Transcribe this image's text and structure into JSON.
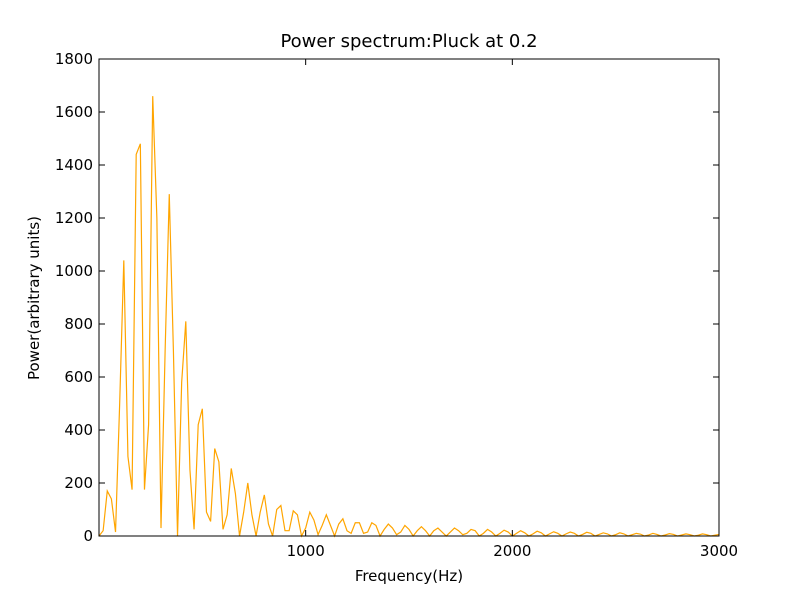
{
  "chart_data": {
    "type": "line",
    "title": "Power spectrum:Pluck at 0.2",
    "x_label": "Frequency(Hz)",
    "y_label": "Power(arbitrary units)",
    "xlim": [
      0,
      3000
    ],
    "xticks": [
      1000,
      2000,
      3000
    ],
    "ylim": [
      0,
      1800
    ],
    "yticks": [
      0,
      200,
      400,
      600,
      800,
      1000,
      1200,
      1400,
      1600,
      1800
    ],
    "grid": false,
    "x": [
      0,
      20,
      40,
      60,
      80,
      100,
      120,
      140,
      160,
      180,
      200,
      220,
      240,
      260,
      280,
      300,
      320,
      340,
      360,
      380,
      400,
      420,
      440,
      460,
      480,
      500,
      520,
      540,
      560,
      580,
      600,
      620,
      640,
      660,
      680,
      700,
      720,
      740,
      760,
      780,
      800,
      820,
      840,
      860,
      880,
      900,
      920,
      940,
      960,
      980,
      1000,
      1020,
      1040,
      1060,
      1080,
      1100,
      1120,
      1140,
      1160,
      1180,
      1200,
      1220,
      1240,
      1260,
      1280,
      1300,
      1320,
      1340,
      1360,
      1380,
      1400,
      1420,
      1440,
      1460,
      1480,
      1500,
      1520,
      1540,
      1560,
      1580,
      1600,
      1620,
      1640,
      1660,
      1680,
      1700,
      1720,
      1740,
      1760,
      1780,
      1800,
      1820,
      1840,
      1860,
      1880,
      1900,
      1920,
      1940,
      1960,
      1980,
      2000,
      2020,
      2040,
      2060,
      2080,
      2100,
      2120,
      2140,
      2160,
      2180,
      2200,
      2220,
      2240,
      2260,
      2280,
      2300,
      2320,
      2340,
      2360,
      2380,
      2400,
      2420,
      2440,
      2460,
      2480,
      2500,
      2520,
      2540,
      2560,
      2580,
      2600,
      2620,
      2640,
      2660,
      2680,
      2700,
      2720,
      2740,
      2760,
      2780,
      2800,
      2820,
      2840,
      2860,
      2880,
      2900,
      2920,
      2940,
      2960,
      2980,
      3000
    ],
    "series": [
      {
        "name": "power",
        "color": "#ffa500",
        "values": [
          0,
          20,
          170,
          140,
          15,
          500,
          1040,
          300,
          175,
          1440,
          1480,
          175,
          420,
          1660,
          1200,
          30,
          700,
          1290,
          700,
          0,
          580,
          810,
          250,
          25,
          420,
          480,
          90,
          55,
          330,
          280,
          25,
          80,
          255,
          160,
          0,
          90,
          200,
          80,
          0,
          90,
          155,
          45,
          0,
          100,
          115,
          20,
          20,
          95,
          80,
          0,
          30,
          90,
          60,
          5,
          40,
          80,
          40,
          0,
          45,
          65,
          20,
          10,
          50,
          50,
          10,
          15,
          50,
          40,
          0,
          25,
          45,
          30,
          5,
          15,
          40,
          25,
          0,
          20,
          35,
          20,
          0,
          20,
          30,
          15,
          0,
          15,
          30,
          20,
          5,
          10,
          25,
          20,
          0,
          10,
          25,
          15,
          0,
          10,
          22,
          15,
          0,
          10,
          20,
          12,
          0,
          8,
          18,
          12,
          0,
          8,
          16,
          10,
          0,
          8,
          15,
          10,
          0,
          6,
          14,
          10,
          0,
          6,
          12,
          8,
          0,
          5,
          12,
          8,
          0,
          5,
          10,
          7,
          0,
          4,
          10,
          6,
          0,
          4,
          9,
          6,
          0,
          4,
          8,
          5,
          0,
          3,
          8,
          5,
          0,
          3,
          6
        ]
      }
    ]
  }
}
